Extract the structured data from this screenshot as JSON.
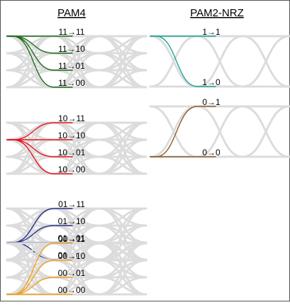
{
  "titles": {
    "pam4": "PAM4",
    "nrz": "PAM2-NRZ"
  },
  "colors": {
    "border": "#555555",
    "eye": "#dcdcdc",
    "pam4": [
      "#1e6b1e",
      "#e8141c",
      "#2b2f8c",
      "#f0a020"
    ],
    "nrz": [
      "#1aa39a",
      "#8b5a2b"
    ]
  },
  "pam4_groups": [
    {
      "from": "11",
      "transitions": [
        {
          "label": "11→11"
        },
        {
          "label": "11→10"
        },
        {
          "label": "11→01"
        },
        {
          "label": "11→00"
        }
      ]
    },
    {
      "from": "10",
      "transitions": [
        {
          "label": "10→11"
        },
        {
          "label": "10→10"
        },
        {
          "label": "10→01"
        },
        {
          "label": "10→00"
        }
      ]
    },
    {
      "from": "01",
      "transitions": [
        {
          "label": "01→11"
        },
        {
          "label": "01→10"
        },
        {
          "label": "01→01"
        },
        {
          "label": "01→00"
        }
      ]
    },
    {
      "from": "00",
      "transitions": [
        {
          "label": "00→11"
        },
        {
          "label": "00→10"
        },
        {
          "label": "00→01"
        },
        {
          "label": "00→00"
        }
      ]
    }
  ],
  "nrz_groups": [
    {
      "from": "1",
      "transitions": [
        {
          "label": "1→1"
        },
        {
          "label": "1→0"
        }
      ]
    },
    {
      "from": "0",
      "transitions": [
        {
          "label": "0→1"
        },
        {
          "label": "0→0"
        }
      ]
    }
  ]
}
